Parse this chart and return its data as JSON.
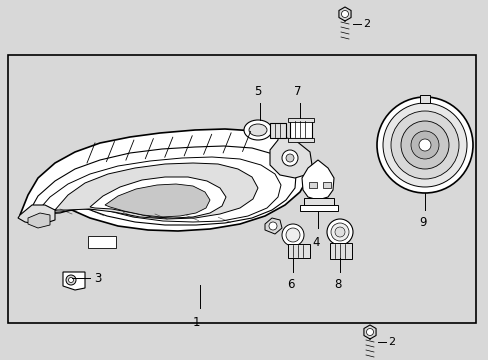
{
  "bg_color": "#d8d8d8",
  "box_bg": "#d0d0d0",
  "box_color": "#ffffff",
  "line_color": "#000000",
  "fig_w": 4.89,
  "fig_h": 3.6,
  "dpi": 100
}
